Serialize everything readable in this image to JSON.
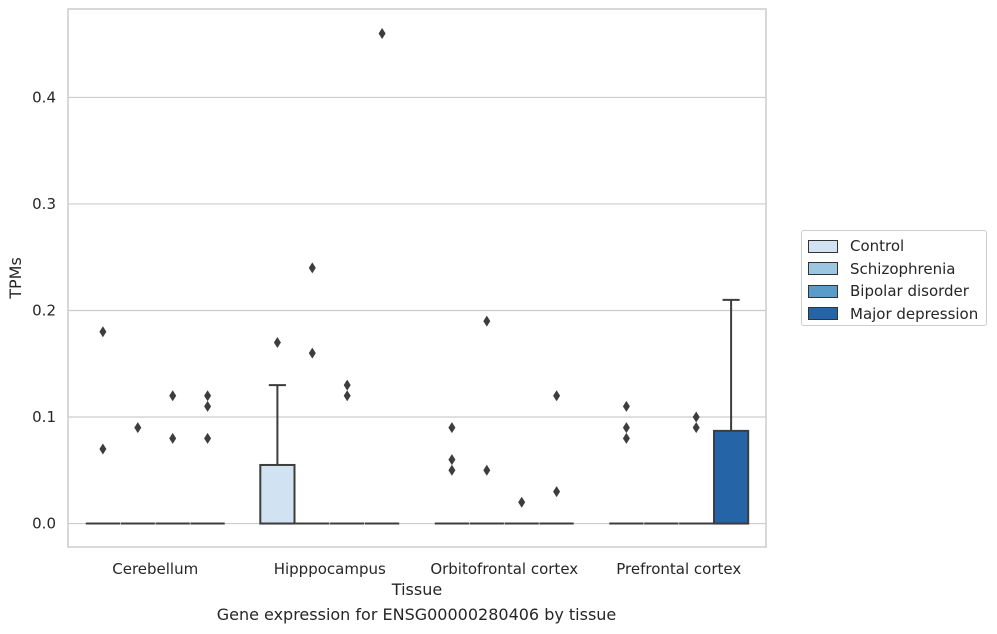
{
  "caption": "Gene expression for ENSG00000280406 by tissue",
  "legend_items": [
    {
      "label": "Control",
      "color": "#d1e2f2"
    },
    {
      "label": "Schizophrenia",
      "color": "#9bc5e0"
    },
    {
      "label": "Bipolar disorder",
      "color": "#5a9bca"
    },
    {
      "label": "Major depression",
      "color": "#2464a7"
    }
  ],
  "chart_data": {
    "type": "box",
    "title": "",
    "xlabel": "Tissue",
    "ylabel": "TPMs",
    "ylim": [
      -0.022,
      0.483
    ],
    "yticks": [
      0.0,
      0.1,
      0.2,
      0.3,
      0.4
    ],
    "ytick_labels": [
      "0.0",
      "0.1",
      "0.2",
      "0.3",
      "0.4"
    ],
    "grid": "horizontal",
    "legend_position": "center-right outside",
    "categories": [
      "Cerebellum",
      "Hipppocampus",
      "Orbitofrontal cortex",
      "Prefrontal cortex"
    ],
    "series": [
      {
        "name": "Control",
        "color": "#d1e2f2",
        "boxes": [
          {
            "q1": 0,
            "median": 0,
            "q3": 0,
            "whisker_low": 0,
            "whisker_high": 0,
            "outliers": [
              0.18,
              0.07
            ]
          },
          {
            "q1": 0,
            "median": 0,
            "q3": 0.055,
            "whisker_low": 0,
            "whisker_high": 0.13,
            "outliers": [
              0.17
            ]
          },
          {
            "q1": 0,
            "median": 0,
            "q3": 0,
            "whisker_low": 0,
            "whisker_high": 0,
            "outliers": [
              0.09,
              0.06,
              0.05
            ]
          },
          {
            "q1": 0,
            "median": 0,
            "q3": 0,
            "whisker_low": 0,
            "whisker_high": 0,
            "outliers": [
              0.11,
              0.09,
              0.08
            ]
          }
        ]
      },
      {
        "name": "Schizophrenia",
        "color": "#9bc5e0",
        "boxes": [
          {
            "q1": 0,
            "median": 0,
            "q3": 0,
            "whisker_low": 0,
            "whisker_high": 0,
            "outliers": [
              0.09
            ]
          },
          {
            "q1": 0,
            "median": 0,
            "q3": 0,
            "whisker_low": 0,
            "whisker_high": 0,
            "outliers": [
              0.24,
              0.16
            ]
          },
          {
            "q1": 0,
            "median": 0,
            "q3": 0,
            "whisker_low": 0,
            "whisker_high": 0,
            "outliers": [
              0.19,
              0.05
            ]
          },
          {
            "q1": 0,
            "median": 0,
            "q3": 0,
            "whisker_low": 0,
            "whisker_high": 0,
            "outliers": []
          }
        ]
      },
      {
        "name": "Bipolar disorder",
        "color": "#5a9bca",
        "boxes": [
          {
            "q1": 0,
            "median": 0,
            "q3": 0,
            "whisker_low": 0,
            "whisker_high": 0,
            "outliers": [
              0.12,
              0.08
            ]
          },
          {
            "q1": 0,
            "median": 0,
            "q3": 0,
            "whisker_low": 0,
            "whisker_high": 0,
            "outliers": [
              0.13,
              0.12
            ]
          },
          {
            "q1": 0,
            "median": 0,
            "q3": 0,
            "whisker_low": 0,
            "whisker_high": 0,
            "outliers": [
              0.02
            ]
          },
          {
            "q1": 0,
            "median": 0,
            "q3": 0,
            "whisker_low": 0,
            "whisker_high": 0,
            "outliers": [
              0.1,
              0.09
            ]
          }
        ]
      },
      {
        "name": "Major depression",
        "color": "#2464a7",
        "boxes": [
          {
            "q1": 0,
            "median": 0,
            "q3": 0,
            "whisker_low": 0,
            "whisker_high": 0,
            "outliers": [
              0.12,
              0.11,
              0.08
            ]
          },
          {
            "q1": 0,
            "median": 0,
            "q3": 0,
            "whisker_low": 0,
            "whisker_high": 0,
            "outliers": [
              0.46
            ]
          },
          {
            "q1": 0,
            "median": 0,
            "q3": 0,
            "whisker_low": 0,
            "whisker_high": 0,
            "outliers": [
              0.12,
              0.03
            ]
          },
          {
            "q1": 0,
            "median": 0,
            "q3": 0.087,
            "whisker_low": 0,
            "whisker_high": 0.21,
            "outliers": []
          }
        ]
      }
    ]
  }
}
